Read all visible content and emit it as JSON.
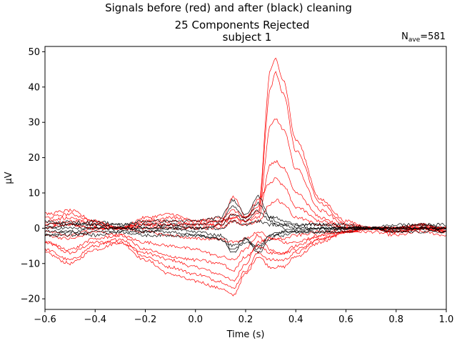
{
  "chart_data": {
    "type": "line",
    "suptitle": "Signals before (red) and after (black) cleaning",
    "title": "25 Components Rejected",
    "subtitle": "subject 1",
    "annotation": {
      "prefix": "N",
      "subscript": "ave",
      "suffix": "=581"
    },
    "xlabel": "Time (s)",
    "ylabel": "µV",
    "xlim": [
      -0.6,
      1.0
    ],
    "ylim": [
      -23,
      51.5
    ],
    "xticks": [
      -0.6,
      -0.4,
      -0.2,
      0.0,
      0.2,
      0.4,
      0.6,
      0.8,
      1.0
    ],
    "xtick_labels": [
      "−0.6",
      "−0.4",
      "−0.2",
      "0.0",
      "0.2",
      "0.4",
      "0.6",
      "0.8",
      "1.0"
    ],
    "yticks": [
      -20,
      -10,
      0,
      10,
      20,
      30,
      40,
      50
    ],
    "ytick_labels": [
      "−20",
      "−10",
      "0",
      "10",
      "20",
      "30",
      "40",
      "50"
    ],
    "grid": false,
    "colors": {
      "before": "#ff0000",
      "after": "#000000"
    },
    "series": [
      {
        "group": "before",
        "x": [
          -0.6,
          -0.5,
          -0.4,
          -0.3,
          -0.2,
          -0.1,
          0.0,
          0.1,
          0.15,
          0.2,
          0.25,
          0.3,
          0.32,
          0.35,
          0.4,
          0.5,
          0.6,
          0.7,
          0.8,
          0.9,
          1.0
        ],
        "values": [
          -4,
          -7,
          -4,
          -4,
          -7,
          -9,
          -11,
          -13,
          -15,
          -10,
          -4,
          -3,
          -3,
          -4,
          -4,
          -2,
          -1,
          0,
          -1,
          0,
          -1
        ]
      },
      {
        "group": "before",
        "x": [
          -0.6,
          -0.5,
          -0.4,
          -0.3,
          -0.2,
          -0.1,
          0.0,
          0.1,
          0.15,
          0.2,
          0.25,
          0.3,
          0.32,
          0.35,
          0.4,
          0.5,
          0.6,
          0.7,
          0.8,
          0.9,
          1.0
        ],
        "values": [
          -7,
          -10,
          -6,
          -4,
          -9,
          -13,
          -15,
          -17,
          -19,
          -13,
          -8,
          -11,
          -11,
          -11,
          -8,
          -4,
          -1,
          -1,
          -2,
          -1,
          -2
        ]
      },
      {
        "group": "before",
        "x": [
          -0.6,
          -0.5,
          -0.4,
          -0.3,
          -0.2,
          -0.1,
          0.0,
          0.1,
          0.15,
          0.2,
          0.25,
          0.3,
          0.32,
          0.35,
          0.4,
          0.5,
          0.6,
          0.7,
          0.8,
          0.9,
          1.0
        ],
        "values": [
          -6,
          -9,
          -5,
          -3,
          -8,
          -11,
          -13,
          -15,
          -17,
          -12,
          -7,
          -9,
          -9,
          -9,
          -7,
          -3,
          -1,
          0,
          -1,
          0,
          -1
        ]
      },
      {
        "group": "before",
        "x": [
          -0.6,
          -0.5,
          -0.4,
          -0.3,
          -0.2,
          -0.1,
          0.0,
          0.1,
          0.15,
          0.2,
          0.25,
          0.3,
          0.32,
          0.35,
          0.4,
          0.5,
          0.6,
          0.7,
          0.8,
          0.9,
          1.0
        ],
        "values": [
          -2,
          -3,
          -1,
          -2,
          -4,
          -5,
          -6,
          -8,
          -9,
          -6,
          -2,
          -6,
          -7,
          -7,
          -6,
          -3,
          -1,
          0,
          -1,
          0,
          0
        ]
      },
      {
        "group": "before",
        "x": [
          -0.6,
          -0.5,
          -0.4,
          -0.3,
          -0.2,
          -0.1,
          0.0,
          0.1,
          0.15,
          0.2,
          0.25,
          0.3,
          0.32,
          0.35,
          0.4,
          0.5,
          0.6,
          0.7,
          0.8,
          0.9,
          1.0
        ],
        "values": [
          4,
          5,
          2,
          0,
          3,
          4,
          2,
          3,
          5,
          3,
          6,
          45,
          48,
          42,
          25,
          8,
          2,
          0,
          0,
          1,
          -1
        ]
      },
      {
        "group": "before",
        "x": [
          -0.6,
          -0.5,
          -0.4,
          -0.3,
          -0.2,
          -0.1,
          0.0,
          0.1,
          0.15,
          0.2,
          0.25,
          0.3,
          0.32,
          0.35,
          0.4,
          0.5,
          0.6,
          0.7,
          0.8,
          0.9,
          1.0
        ],
        "values": [
          3,
          4,
          2,
          0,
          2,
          3,
          2,
          2,
          4,
          3,
          5,
          40,
          44,
          38,
          22,
          7,
          1,
          0,
          0,
          1,
          -1
        ]
      },
      {
        "group": "before",
        "x": [
          -0.6,
          -0.5,
          -0.4,
          -0.3,
          -0.2,
          -0.1,
          0.0,
          0.1,
          0.15,
          0.2,
          0.25,
          0.3,
          0.32,
          0.35,
          0.4,
          0.5,
          0.6,
          0.7,
          0.8,
          0.9,
          1.0
        ],
        "values": [
          2,
          3,
          1,
          0,
          2,
          2,
          1,
          2,
          3,
          2,
          4,
          29,
          31,
          28,
          17,
          5,
          1,
          0,
          0,
          1,
          0
        ]
      },
      {
        "group": "before",
        "x": [
          -0.6,
          -0.5,
          -0.4,
          -0.3,
          -0.2,
          -0.1,
          0.0,
          0.1,
          0.15,
          0.2,
          0.25,
          0.3,
          0.32,
          0.35,
          0.4,
          0.5,
          0.6,
          0.7,
          0.8,
          0.9,
          1.0
        ],
        "values": [
          1,
          2,
          1,
          0,
          1,
          1,
          1,
          1,
          3,
          2,
          3,
          18,
          19,
          17,
          10,
          3,
          0,
          0,
          0,
          0,
          0
        ]
      },
      {
        "group": "before",
        "x": [
          -0.6,
          -0.5,
          -0.4,
          -0.3,
          -0.2,
          -0.1,
          0.0,
          0.1,
          0.15,
          0.2,
          0.25,
          0.3,
          0.32,
          0.35,
          0.4,
          0.5,
          0.6,
          0.7,
          0.8,
          0.9,
          1.0
        ],
        "values": [
          1,
          1,
          0,
          0,
          1,
          1,
          0,
          1,
          9,
          3,
          8,
          13,
          14,
          12,
          6,
          2,
          0,
          0,
          0,
          0,
          0
        ]
      },
      {
        "group": "before",
        "x": [
          -0.6,
          -0.5,
          -0.4,
          -0.3,
          -0.2,
          -0.1,
          0.0,
          0.1,
          0.15,
          0.2,
          0.25,
          0.3,
          0.32,
          0.35,
          0.4,
          0.5,
          0.6,
          0.7,
          0.8,
          0.9,
          1.0
        ],
        "values": [
          0,
          1,
          0,
          0,
          0,
          0,
          0,
          0,
          2,
          1,
          2,
          7,
          8,
          7,
          3,
          1,
          0,
          0,
          0,
          0,
          0
        ]
      },
      {
        "group": "before",
        "x": [
          -0.6,
          -0.5,
          -0.4,
          -0.3,
          -0.2,
          -0.1,
          0.0,
          0.1,
          0.15,
          0.2,
          0.25,
          0.3,
          0.32,
          0.35,
          0.4,
          0.5,
          0.6,
          0.7,
          0.8,
          0.9,
          1.0
        ],
        "values": [
          -1,
          -2,
          0,
          0,
          -1,
          -2,
          -3,
          -3,
          -4,
          -3,
          -1,
          -3,
          -3,
          -3,
          -2,
          -1,
          0,
          0,
          0,
          0,
          0
        ]
      },
      {
        "group": "before",
        "x": [
          -0.6,
          -0.5,
          -0.4,
          -0.3,
          -0.2,
          -0.1,
          0.0,
          0.1,
          0.15,
          0.2,
          0.25,
          0.3,
          0.32,
          0.35,
          0.4,
          0.5,
          0.6,
          0.7,
          0.8,
          0.9,
          1.0
        ],
        "values": [
          -4,
          -6,
          -3,
          -2,
          -6,
          -8,
          -9,
          -10,
          -12,
          -8,
          -5,
          -7,
          -7,
          -7,
          -5,
          -2,
          -1,
          0,
          -1,
          0,
          -1
        ]
      },
      {
        "group": "after",
        "x": [
          -0.6,
          -0.5,
          -0.4,
          -0.3,
          -0.2,
          -0.1,
          0.0,
          0.1,
          0.15,
          0.2,
          0.25,
          0.3,
          0.32,
          0.35,
          0.4,
          0.5,
          0.6,
          0.7,
          0.8,
          0.9,
          1.0
        ],
        "values": [
          1,
          2,
          1,
          1,
          1,
          1,
          1,
          2,
          6,
          3,
          7,
          3,
          2,
          1,
          1,
          1,
          0,
          0,
          0,
          1,
          0
        ]
      },
      {
        "group": "after",
        "x": [
          -0.6,
          -0.5,
          -0.4,
          -0.3,
          -0.2,
          -0.1,
          0.0,
          0.1,
          0.15,
          0.2,
          0.25,
          0.3,
          0.32,
          0.35,
          0.4,
          0.5,
          0.6,
          0.7,
          0.8,
          0.9,
          1.0
        ],
        "values": [
          0,
          1,
          1,
          0,
          0,
          1,
          0,
          1,
          4,
          2,
          5,
          2,
          1,
          1,
          0,
          0,
          0,
          0,
          0,
          0,
          0
        ]
      },
      {
        "group": "after",
        "x": [
          -0.6,
          -0.5,
          -0.4,
          -0.3,
          -0.2,
          -0.1,
          0.0,
          0.1,
          0.15,
          0.2,
          0.25,
          0.3,
          0.32,
          0.35,
          0.4,
          0.5,
          0.6,
          0.7,
          0.8,
          0.9,
          1.0
        ],
        "values": [
          -1,
          -1,
          0,
          0,
          -1,
          0,
          -1,
          -2,
          -5,
          -3,
          -6,
          -2,
          -1,
          -1,
          -1,
          0,
          0,
          0,
          0,
          0,
          0
        ]
      },
      {
        "group": "after",
        "x": [
          -0.6,
          -0.5,
          -0.4,
          -0.3,
          -0.2,
          -0.1,
          0.0,
          0.1,
          0.15,
          0.2,
          0.25,
          0.3,
          0.32,
          0.35,
          0.4,
          0.5,
          0.6,
          0.7,
          0.8,
          0.9,
          1.0
        ],
        "values": [
          -2,
          -2,
          -1,
          -1,
          -1,
          -1,
          -2,
          -3,
          -6,
          -4,
          -5,
          -2,
          -2,
          -1,
          -1,
          -1,
          0,
          0,
          -1,
          0,
          -1
        ]
      },
      {
        "group": "after",
        "x": [
          -0.6,
          -0.5,
          -0.4,
          -0.3,
          -0.2,
          -0.1,
          0.0,
          0.1,
          0.15,
          0.2,
          0.25,
          0.3,
          0.32,
          0.35,
          0.4,
          0.5,
          0.6,
          0.7,
          0.8,
          0.9,
          1.0
        ],
        "values": [
          2,
          1,
          2,
          1,
          2,
          2,
          2,
          3,
          8,
          4,
          9,
          3,
          3,
          2,
          1,
          1,
          1,
          0,
          1,
          1,
          1
        ]
      },
      {
        "group": "after",
        "x": [
          -0.6,
          -0.5,
          -0.4,
          -0.3,
          -0.2,
          -0.1,
          0.0,
          0.1,
          0.15,
          0.2,
          0.25,
          0.3,
          0.32,
          0.35,
          0.4,
          0.5,
          0.6,
          0.7,
          0.8,
          0.9,
          1.0
        ],
        "values": [
          -2,
          -1,
          -2,
          -1,
          -2,
          -2,
          -2,
          -3,
          -7,
          -3,
          -7,
          -3,
          -2,
          -2,
          -1,
          -1,
          -1,
          0,
          -1,
          -1,
          -1
        ]
      },
      {
        "group": "after",
        "x": [
          -0.6,
          -0.5,
          -0.4,
          -0.3,
          -0.2,
          -0.1,
          0.0,
          0.1,
          0.15,
          0.2,
          0.25,
          0.3,
          0.32,
          0.35,
          0.4,
          0.5,
          0.6,
          0.7,
          0.8,
          0.9,
          1.0
        ],
        "values": [
          0,
          0,
          0,
          0,
          0,
          0,
          0,
          0,
          2,
          1,
          2,
          1,
          1,
          0,
          0,
          0,
          0,
          0,
          0,
          0,
          0
        ]
      }
    ]
  }
}
